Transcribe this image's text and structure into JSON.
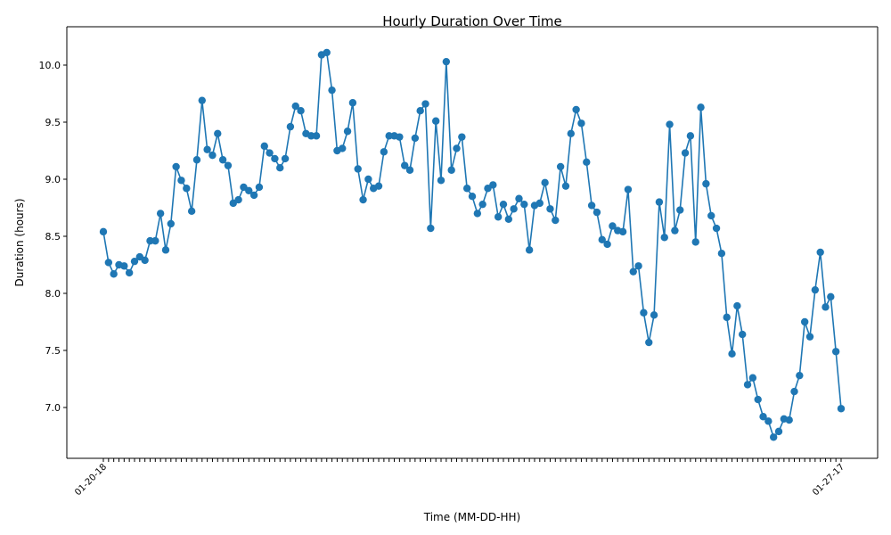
{
  "chart_data": {
    "type": "line",
    "title": "Hourly Duration Over Time",
    "xlabel": "Time (MM-DD-HH)",
    "ylabel": "Duration (hours)",
    "ylim": [
      6.6,
      10.3
    ],
    "y_ticks": [
      7.0,
      7.5,
      8.0,
      8.5,
      9.0,
      9.5,
      10.0
    ],
    "y_tick_labels": [
      "7.0",
      "7.5",
      "8.0",
      "8.5",
      "9.0",
      "9.5",
      "10.0"
    ],
    "x_tick_labels_note": "",
    "x_first_label": "01-20-18",
    "x_last_label": "01-27-17",
    "grid": false,
    "line_color": "#1f77b4",
    "series": [
      {
        "values": [
          8.54,
          8.27,
          8.17,
          8.25,
          8.24,
          8.18,
          8.28,
          8.32,
          8.29,
          8.46,
          8.46,
          8.7,
          8.38,
          8.61,
          9.11,
          8.99,
          8.92,
          8.72,
          9.17,
          9.69,
          9.26,
          9.21,
          9.4,
          9.17,
          9.12,
          8.79,
          8.82,
          8.93,
          8.9,
          8.86,
          8.93,
          9.29,
          9.23,
          9.18,
          9.1,
          9.18,
          9.46,
          9.64,
          9.6,
          9.4,
          9.38,
          9.38,
          10.09,
          10.11,
          9.78,
          9.25,
          9.27,
          9.42,
          9.67,
          9.09,
          8.82,
          9.0,
          8.92,
          8.94,
          9.24,
          9.38,
          9.38,
          9.37,
          9.12,
          9.08,
          9.36,
          9.6,
          9.66,
          8.57,
          9.51,
          8.99,
          10.03,
          9.08,
          9.27,
          9.37,
          8.92,
          8.85,
          8.7,
          8.78,
          8.92,
          8.95,
          8.67,
          8.78,
          8.65,
          8.74,
          8.83,
          8.78,
          8.38,
          8.77,
          8.79,
          8.97,
          8.74,
          8.64,
          9.11,
          8.94,
          9.4,
          9.61,
          9.49,
          9.15,
          8.77,
          8.71,
          8.47,
          8.43,
          8.59,
          8.55,
          8.54,
          8.91,
          8.19,
          8.24,
          7.83,
          7.57,
          7.81,
          8.8,
          8.49,
          9.48,
          8.55,
          8.73,
          9.23,
          9.38,
          8.45,
          9.63,
          8.96,
          8.68,
          8.57,
          8.35,
          7.79,
          7.47,
          7.89,
          7.64,
          7.2,
          7.26,
          7.07,
          6.92,
          6.88,
          6.74,
          6.79,
          6.9,
          6.89,
          7.14,
          7.28,
          7.75,
          7.62,
          8.03,
          8.36,
          7.88,
          7.97,
          7.49,
          6.99
        ]
      }
    ]
  }
}
